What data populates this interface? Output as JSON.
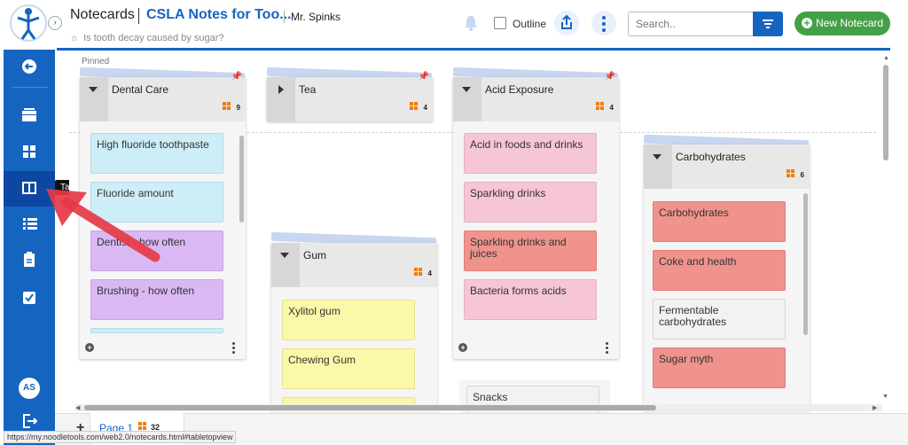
{
  "header": {
    "app_title": "Notecards",
    "project_title": "CSLA Notes for Too...",
    "teacher": "Mr. Spinks",
    "research_question": "Is tooth decay caused by sugar?",
    "outline_label": "Outline",
    "search_placeholder": "Search..",
    "new_notecard_label": "New Notecard",
    "collapse_icon": "chevron-right-icon"
  },
  "sidebar": {
    "items": [
      {
        "icon": "back-arrow-icon"
      },
      {
        "icon": "stack-icon"
      },
      {
        "icon": "grid-icon"
      },
      {
        "icon": "columns-icon",
        "active": true
      },
      {
        "icon": "list-icon"
      },
      {
        "icon": "clipboard-icon"
      },
      {
        "icon": "checkbox-icon"
      }
    ],
    "tooltip": "Tabletop View",
    "avatar_initials": "AS",
    "logout_icon": "logout-icon"
  },
  "board": {
    "pinned_label": "Pinned",
    "columns": [
      {
        "title": "Dental Care",
        "count": "9",
        "expanded": true,
        "pinned": true,
        "cards": [
          {
            "text": "High fluoride toothpaste",
            "color": "#cdeef6"
          },
          {
            "text": "Fluoride amount",
            "color": "#cdeef6"
          },
          {
            "text": "Dentist - how often",
            "color": "#d9b8f3"
          },
          {
            "text": "Brushing - how often",
            "color": "#d9b8f3"
          }
        ]
      },
      {
        "title": "Tea",
        "count": "4",
        "expanded": false,
        "pinned": true,
        "cards": []
      },
      {
        "title": "Acid Exposure",
        "count": "4",
        "expanded": true,
        "pinned": true,
        "cards": [
          {
            "text": "Acid in foods and drinks",
            "color": "#f6c6d4"
          },
          {
            "text": "Sparkling drinks",
            "color": "#f6c6d4"
          },
          {
            "text": "Sparkling drinks and juices",
            "color": "#f0938d"
          },
          {
            "text": "Bacteria forms acids",
            "color": "#f6c6d4"
          }
        ]
      },
      {
        "title": "Gum",
        "count": "4",
        "expanded": true,
        "pinned": false,
        "cards": [
          {
            "text": "Xylitol gum",
            "color": "#fbf8a9"
          },
          {
            "text": "Chewing Gum",
            "color": "#fbf8a9"
          }
        ]
      },
      {
        "title": "Carbohydrates",
        "count": "6",
        "expanded": true,
        "pinned": false,
        "cards": [
          {
            "text": "Carbohydrates",
            "color": "#f0938d"
          },
          {
            "text": "Coke and health",
            "color": "#f0938d"
          },
          {
            "text": "Fermentable carbohydrates",
            "color": "#f2f2f2"
          },
          {
            "text": "Sugar myth",
            "color": "#f0938d"
          }
        ]
      },
      {
        "title": "",
        "count": "",
        "expanded": true,
        "pinned": false,
        "cards": [
          {
            "text": "Snacks",
            "color": "#f2f2f2"
          }
        ]
      }
    ]
  },
  "pages": {
    "add_label": "+",
    "tab_label": "Page 1",
    "tab_count": "32"
  },
  "status_url": "https://my.noodletools.com/web2.0/notecards.html#tabletopview"
}
